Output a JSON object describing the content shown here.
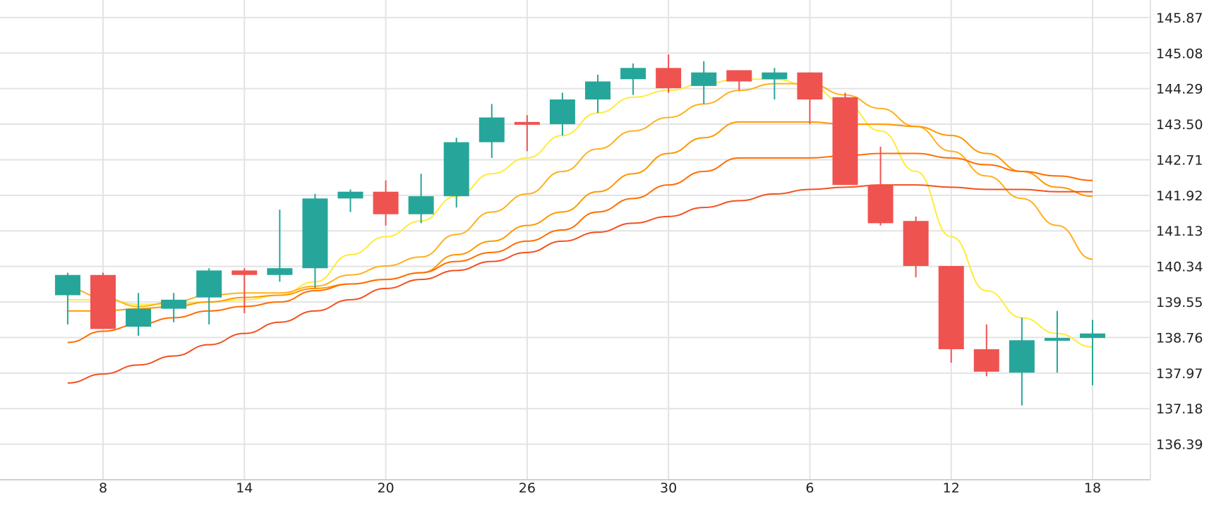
{
  "chart_data": {
    "type": "candlestick",
    "x_tick_labels": [
      "8",
      "14",
      "20",
      "26",
      "30",
      "6",
      "12",
      "18"
    ],
    "y_tick_labels": [
      "145.87",
      "145.08",
      "144.29",
      "143.50",
      "142.71",
      "141.92",
      "141.13",
      "140.34",
      "139.55",
      "138.76",
      "137.97",
      "137.18",
      "136.39"
    ],
    "y_ticks": [
      145.87,
      145.08,
      144.29,
      143.5,
      142.71,
      141.92,
      141.13,
      140.34,
      139.55,
      138.76,
      137.97,
      137.18,
      136.39
    ],
    "ylim": [
      135.6,
      146.26
    ],
    "grid": true,
    "y_axis_position": "right",
    "colors": {
      "up": "#26a69a",
      "down": "#ef5350",
      "grid": "#e3e3e3",
      "text": "#222222"
    },
    "candles": [
      {
        "x": 7,
        "open": 139.7,
        "high": 140.2,
        "low": 139.05,
        "close": 140.15
      },
      {
        "x": 8,
        "open": 140.15,
        "high": 140.2,
        "low": 138.95,
        "close": 138.95
      },
      {
        "x": 9,
        "open": 139.0,
        "high": 139.75,
        "low": 138.8,
        "close": 139.4
      },
      {
        "x": 10,
        "open": 139.4,
        "high": 139.75,
        "low": 139.1,
        "close": 139.6
      },
      {
        "x": 11,
        "open": 139.65,
        "high": 140.3,
        "low": 139.05,
        "close": 140.25
      },
      {
        "x": 12,
        "open": 140.25,
        "high": 140.3,
        "low": 139.3,
        "close": 140.15
      },
      {
        "x": 13,
        "open": 140.15,
        "high": 141.6,
        "low": 140.0,
        "close": 140.3
      },
      {
        "x": 14,
        "open": 140.3,
        "high": 141.95,
        "low": 139.85,
        "close": 141.85
      },
      {
        "x": 15,
        "open": 141.85,
        "high": 142.05,
        "low": 141.55,
        "close": 142.0
      },
      {
        "x": 16,
        "open": 142.0,
        "high": 142.25,
        "low": 141.25,
        "close": 141.5
      },
      {
        "x": 17,
        "open": 141.5,
        "high": 142.4,
        "low": 141.3,
        "close": 141.9
      },
      {
        "x": 18,
        "open": 141.9,
        "high": 143.2,
        "low": 141.65,
        "close": 143.1
      },
      {
        "x": 19,
        "open": 143.1,
        "high": 143.95,
        "low": 142.75,
        "close": 143.65
      },
      {
        "x": 20,
        "open": 143.55,
        "high": 143.7,
        "low": 142.9,
        "close": 143.5
      },
      {
        "x": 21,
        "open": 143.5,
        "high": 144.2,
        "low": 143.25,
        "close": 144.05
      },
      {
        "x": 22,
        "open": 144.05,
        "high": 144.6,
        "low": 143.75,
        "close": 144.45
      },
      {
        "x": 23,
        "open": 144.5,
        "high": 144.85,
        "low": 144.15,
        "close": 144.75
      },
      {
        "x": 24,
        "open": 144.75,
        "high": 145.05,
        "low": 144.2,
        "close": 144.3
      },
      {
        "x": 25,
        "open": 144.35,
        "high": 144.9,
        "low": 143.95,
        "close": 144.65
      },
      {
        "x": 26,
        "open": 144.7,
        "high": 144.7,
        "low": 144.25,
        "close": 144.45
      },
      {
        "x": 27,
        "open": 144.5,
        "high": 144.75,
        "low": 144.05,
        "close": 144.65
      },
      {
        "x": 28,
        "open": 144.65,
        "high": 144.65,
        "low": 143.5,
        "close": 144.05
      },
      {
        "x": 29,
        "open": 144.1,
        "high": 144.2,
        "low": 142.15,
        "close": 142.15
      },
      {
        "x": 30,
        "open": 142.15,
        "high": 143.0,
        "low": 141.25,
        "close": 141.3
      },
      {
        "x": 31,
        "open": 141.35,
        "high": 141.45,
        "low": 140.1,
        "close": 140.35
      },
      {
        "x": 32,
        "open": 140.35,
        "high": 140.35,
        "low": 138.2,
        "close": 138.5
      },
      {
        "x": 33,
        "open": 138.5,
        "high": 139.05,
        "low": 137.9,
        "close": 138.0
      },
      {
        "x": 34,
        "open": 137.98,
        "high": 139.2,
        "low": 137.25,
        "close": 138.7
      },
      {
        "x": 35,
        "open": 138.75,
        "high": 139.35,
        "low": 137.98,
        "close": 138.75
      },
      {
        "x": 36,
        "open": 138.75,
        "high": 139.15,
        "low": 137.7,
        "close": 138.85
      }
    ],
    "moving_averages": [
      {
        "color": "#ffeb3b",
        "points": [
          [
            7,
            139.6
          ],
          [
            8,
            139.6
          ],
          [
            9,
            139.5
          ],
          [
            10,
            139.5
          ],
          [
            11,
            139.55
          ],
          [
            12,
            139.6
          ],
          [
            13,
            139.7
          ],
          [
            14,
            140.0
          ],
          [
            15,
            140.6
          ],
          [
            16,
            141.0
          ],
          [
            17,
            141.35
          ],
          [
            18,
            141.9
          ],
          [
            19,
            142.4
          ],
          [
            20,
            142.75
          ],
          [
            21,
            143.25
          ],
          [
            22,
            143.75
          ],
          [
            23,
            144.1
          ],
          [
            24,
            144.25
          ],
          [
            25,
            144.4
          ],
          [
            26,
            144.5
          ],
          [
            27,
            144.5
          ],
          [
            28,
            144.35
          ],
          [
            29,
            143.95
          ],
          [
            30,
            143.35
          ],
          [
            31,
            142.45
          ],
          [
            32,
            141.0
          ],
          [
            33,
            139.8
          ],
          [
            34,
            139.2
          ],
          [
            35,
            138.85
          ],
          [
            36,
            138.55
          ]
        ]
      },
      {
        "color": "#ffb020",
        "points": [
          [
            7,
            139.85
          ],
          [
            8,
            139.65
          ],
          [
            9,
            139.45
          ],
          [
            10,
            139.55
          ],
          [
            11,
            139.7
          ],
          [
            12,
            139.75
          ],
          [
            13,
            139.75
          ],
          [
            14,
            139.9
          ],
          [
            15,
            140.15
          ],
          [
            16,
            140.35
          ],
          [
            17,
            140.55
          ],
          [
            18,
            141.05
          ],
          [
            19,
            141.55
          ],
          [
            20,
            141.95
          ],
          [
            21,
            142.45
          ],
          [
            22,
            142.95
          ],
          [
            23,
            143.35
          ],
          [
            24,
            143.65
          ],
          [
            25,
            143.95
          ],
          [
            26,
            144.25
          ],
          [
            27,
            144.4
          ],
          [
            28,
            144.4
          ],
          [
            29,
            144.15
          ],
          [
            30,
            143.85
          ],
          [
            31,
            143.45
          ],
          [
            32,
            142.9
          ],
          [
            33,
            142.35
          ],
          [
            34,
            141.85
          ],
          [
            35,
            141.25
          ],
          [
            36,
            140.5
          ]
        ]
      },
      {
        "color": "#ff9800",
        "points": [
          [
            7,
            139.35
          ],
          [
            8,
            139.35
          ],
          [
            9,
            139.4
          ],
          [
            10,
            139.45
          ],
          [
            11,
            139.55
          ],
          [
            12,
            139.65
          ],
          [
            13,
            139.7
          ],
          [
            14,
            139.85
          ],
          [
            15,
            139.95
          ],
          [
            16,
            140.05
          ],
          [
            17,
            140.2
          ],
          [
            18,
            140.6
          ],
          [
            19,
            140.9
          ],
          [
            20,
            141.25
          ],
          [
            21,
            141.55
          ],
          [
            22,
            142.0
          ],
          [
            23,
            142.4
          ],
          [
            24,
            142.85
          ],
          [
            25,
            143.2
          ],
          [
            26,
            143.55
          ],
          [
            27,
            143.55
          ],
          [
            28,
            143.55
          ],
          [
            29,
            143.5
          ],
          [
            30,
            143.5
          ],
          [
            31,
            143.45
          ],
          [
            32,
            143.25
          ],
          [
            33,
            142.85
          ],
          [
            34,
            142.45
          ],
          [
            35,
            142.1
          ],
          [
            36,
            141.9
          ]
        ]
      },
      {
        "color": "#ff6d00",
        "points": [
          [
            7,
            138.65
          ],
          [
            8,
            138.9
          ],
          [
            9,
            139.05
          ],
          [
            10,
            139.2
          ],
          [
            11,
            139.35
          ],
          [
            12,
            139.45
          ],
          [
            13,
            139.55
          ],
          [
            14,
            139.8
          ],
          [
            15,
            139.95
          ],
          [
            16,
            140.05
          ],
          [
            17,
            140.2
          ],
          [
            18,
            140.45
          ],
          [
            19,
            140.65
          ],
          [
            20,
            140.9
          ],
          [
            21,
            141.15
          ],
          [
            22,
            141.55
          ],
          [
            23,
            141.85
          ],
          [
            24,
            142.15
          ],
          [
            25,
            142.45
          ],
          [
            26,
            142.75
          ],
          [
            27,
            142.75
          ],
          [
            28,
            142.75
          ],
          [
            29,
            142.8
          ],
          [
            30,
            142.85
          ],
          [
            31,
            142.85
          ],
          [
            32,
            142.75
          ],
          [
            33,
            142.6
          ],
          [
            34,
            142.45
          ],
          [
            35,
            142.35
          ],
          [
            36,
            142.25
          ]
        ]
      },
      {
        "color": "#f4511e",
        "points": [
          [
            7,
            137.75
          ],
          [
            8,
            137.95
          ],
          [
            9,
            138.15
          ],
          [
            10,
            138.35
          ],
          [
            11,
            138.6
          ],
          [
            12,
            138.85
          ],
          [
            13,
            139.1
          ],
          [
            14,
            139.35
          ],
          [
            15,
            139.6
          ],
          [
            16,
            139.85
          ],
          [
            17,
            140.05
          ],
          [
            18,
            140.25
          ],
          [
            19,
            140.45
          ],
          [
            20,
            140.65
          ],
          [
            21,
            140.9
          ],
          [
            22,
            141.1
          ],
          [
            23,
            141.3
          ],
          [
            24,
            141.45
          ],
          [
            25,
            141.65
          ],
          [
            26,
            141.8
          ],
          [
            27,
            141.95
          ],
          [
            28,
            142.05
          ],
          [
            29,
            142.1
          ],
          [
            30,
            142.15
          ],
          [
            31,
            142.15
          ],
          [
            32,
            142.1
          ],
          [
            33,
            142.05
          ],
          [
            34,
            142.05
          ],
          [
            35,
            142.0
          ],
          [
            36,
            142.0
          ]
        ]
      }
    ],
    "x_ticks": [
      8,
      12,
      16,
      20,
      24,
      28,
      32,
      36
    ]
  }
}
